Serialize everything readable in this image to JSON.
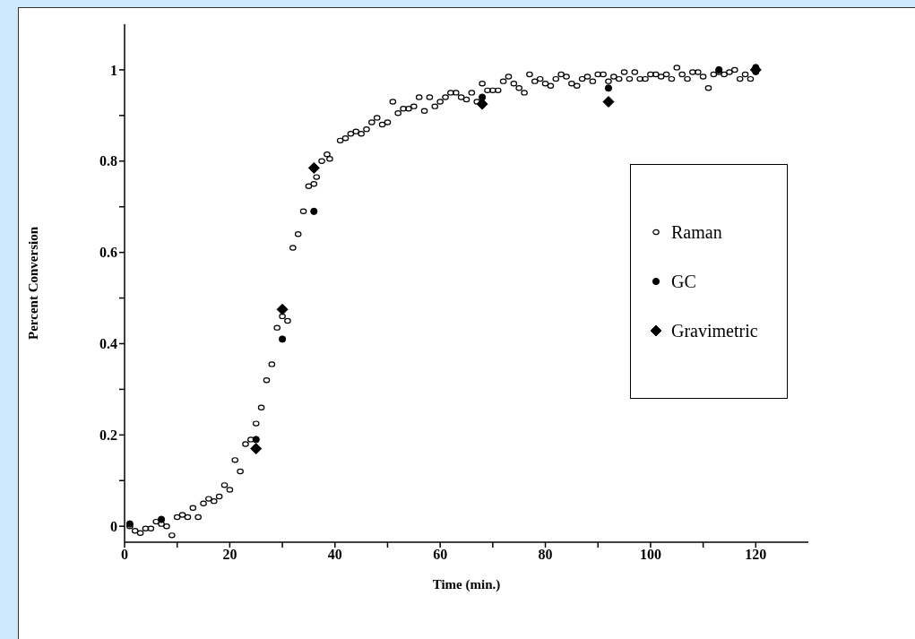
{
  "chart_data": {
    "type": "scatter",
    "xlabel": "Time (min.)",
    "ylabel": "Percent Conversion",
    "xlim": [
      0,
      130
    ],
    "ylim": [
      -0.035,
      1.1
    ],
    "xticks": [
      0,
      {
        "value": 10,
        "label": null
      },
      20,
      {
        "value": 30,
        "label": null
      },
      40,
      {
        "value": 50,
        "label": null
      },
      60,
      {
        "value": 70,
        "label": null
      },
      80,
      {
        "value": 90,
        "label": null
      },
      100,
      {
        "value": 110,
        "label": null
      },
      120
    ],
    "yticks": [
      0,
      {
        "value": 0.1,
        "label": null
      },
      0.2,
      {
        "value": 0.3,
        "label": null
      },
      0.4,
      {
        "value": 0.5,
        "label": null
      },
      0.6,
      {
        "value": 0.7,
        "label": null
      },
      0.8,
      {
        "value": 0.9,
        "label": null
      },
      1
    ],
    "grid": false,
    "legend": "right",
    "series": [
      {
        "name": "Raman",
        "color": "#000000",
        "marker": "circle",
        "x": [
          1,
          2,
          3,
          4,
          5,
          6,
          7,
          8,
          9,
          10,
          11,
          12,
          13,
          14,
          15,
          16,
          17,
          18,
          19,
          20,
          21,
          22,
          23,
          24,
          25,
          26,
          27,
          28,
          29,
          30,
          31,
          32,
          33,
          34,
          35,
          36,
          36.5,
          37.5,
          38.5,
          39,
          41,
          42,
          43,
          44,
          45,
          46,
          47,
          48,
          49,
          50,
          51,
          52,
          53,
          54,
          55,
          56,
          57,
          58,
          59,
          60,
          61,
          62,
          63,
          64,
          65,
          66,
          67,
          68,
          69,
          70,
          71,
          72,
          73,
          74,
          75,
          76,
          77,
          78,
          79,
          80,
          81,
          82,
          83,
          84,
          85,
          86,
          87,
          88,
          89,
          90,
          91,
          92,
          93,
          94,
          95,
          96,
          97,
          98,
          99,
          100,
          101,
          102,
          103,
          104,
          105,
          106,
          107,
          108,
          109,
          110,
          111,
          112,
          113,
          114,
          115,
          116,
          117,
          118,
          119,
          120
        ],
        "values": [
          0.0,
          -0.01,
          -0.015,
          -0.005,
          -0.005,
          0.01,
          0.005,
          0.0,
          -0.02,
          0.02,
          0.025,
          0.02,
          0.04,
          0.02,
          0.05,
          0.06,
          0.055,
          0.065,
          0.09,
          0.08,
          0.145,
          0.12,
          0.18,
          0.19,
          0.225,
          0.26,
          0.32,
          0.355,
          0.435,
          0.46,
          0.45,
          0.61,
          0.64,
          0.69,
          0.745,
          0.75,
          0.765,
          0.8,
          0.815,
          0.805,
          0.845,
          0.85,
          0.86,
          0.865,
          0.86,
          0.87,
          0.885,
          0.895,
          0.88,
          0.885,
          0.93,
          0.905,
          0.915,
          0.915,
          0.92,
          0.94,
          0.91,
          0.94,
          0.92,
          0.93,
          0.94,
          0.95,
          0.95,
          0.94,
          0.935,
          0.95,
          0.93,
          0.97,
          0.955,
          0.955,
          0.955,
          0.975,
          0.985,
          0.97,
          0.96,
          0.95,
          0.99,
          0.975,
          0.98,
          0.97,
          0.965,
          0.98,
          0.99,
          0.985,
          0.97,
          0.965,
          0.98,
          0.985,
          0.975,
          0.99,
          0.99,
          0.975,
          0.985,
          0.98,
          0.995,
          0.98,
          0.995,
          0.98,
          0.98,
          0.99,
          0.99,
          0.985,
          0.99,
          0.98,
          1.005,
          0.99,
          0.98,
          0.995,
          0.995,
          0.985,
          0.96,
          0.99,
          0.995,
          0.99,
          0.995,
          1.0,
          0.98,
          0.99,
          0.98,
          0.995
        ]
      },
      {
        "name": "GC",
        "color": "#000000",
        "marker": "circle",
        "x": [
          1,
          7,
          25,
          30,
          36,
          68,
          92,
          113,
          120
        ],
        "values": [
          0.005,
          0.015,
          0.19,
          0.41,
          0.69,
          0.94,
          0.96,
          1.0,
          1.005
        ]
      },
      {
        "name": "Gravimetric",
        "color": "#000000",
        "marker": "diamond",
        "x": [
          25,
          30,
          36,
          68,
          92,
          120
        ],
        "values": [
          0.17,
          0.475,
          0.785,
          0.925,
          0.93,
          1.0
        ]
      }
    ]
  }
}
